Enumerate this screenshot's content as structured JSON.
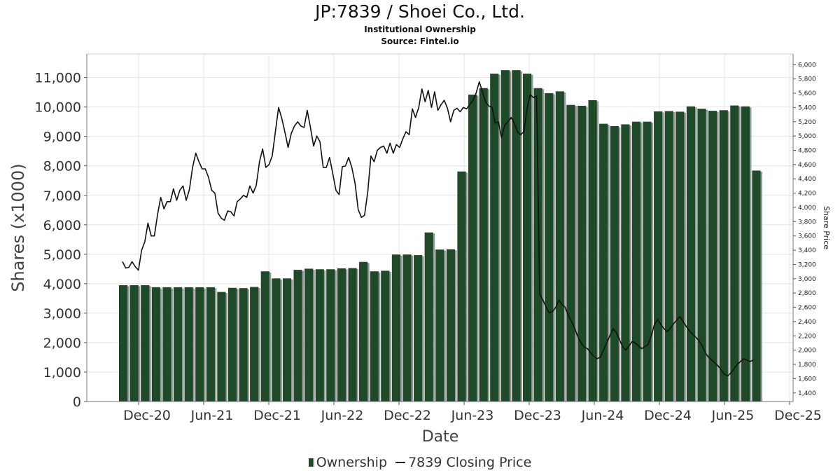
{
  "title": "JP:7839 / Shoei Co., Ltd.",
  "subtitle": "Institutional Ownership",
  "source": "Source: Fintel.io",
  "legend": {
    "bar_label": "Ownership",
    "line_label": "7839 Closing Price"
  },
  "colors": {
    "bar": "#1e4a2a",
    "bar_shadow": "#9a9a9a",
    "line": "#111111",
    "grid": "#e4e4e4"
  },
  "chart_data": {
    "type": "bar",
    "xlabel": "Date",
    "ylabel": "Shares (x1000)",
    "y2label": "Share Price",
    "ylim": [
      0,
      11800
    ],
    "y2lim": [
      1280,
      6150
    ],
    "yticks": [
      0,
      1000,
      2000,
      3000,
      4000,
      5000,
      6000,
      7000,
      8000,
      9000,
      10000,
      11000
    ],
    "y2ticks": [
      1400,
      1600,
      1800,
      2000,
      2200,
      2400,
      2600,
      2800,
      3000,
      3200,
      3400,
      3600,
      3800,
      4000,
      4200,
      4400,
      4600,
      4800,
      5000,
      5200,
      5400,
      5600,
      5800,
      6000
    ],
    "xticks": [
      "Dec-20",
      "Jun-21",
      "Dec-21",
      "Jun-22",
      "Dec-22",
      "Jun-23",
      "Dec-23",
      "Jun-24",
      "Dec-24",
      "Jun-25",
      "Dec-25"
    ],
    "grid": true,
    "legend_position": "bottom",
    "series": [
      {
        "name": "Ownership",
        "type": "bar",
        "values": [
          3950,
          3950,
          3950,
          3880,
          3880,
          3880,
          3880,
          3880,
          3880,
          3720,
          3860,
          3850,
          3890,
          4420,
          4180,
          4180,
          4470,
          4510,
          4490,
          4490,
          4520,
          4530,
          4740,
          4420,
          4440,
          4990,
          4990,
          4970,
          5740,
          5160,
          5170,
          7810,
          10420,
          10640,
          11130,
          11250,
          11250,
          11130,
          10640,
          10470,
          10530,
          10070,
          10040,
          10230,
          9430,
          9350,
          9410,
          9500,
          9500,
          9850,
          9860,
          9840,
          10020,
          9940,
          9870,
          9890,
          10050,
          10020,
          7840
        ]
      },
      {
        "name": "7839 Closing Price",
        "type": "line",
        "values": [
          3240,
          3150,
          3160,
          3240,
          3170,
          3120,
          3400,
          3520,
          3780,
          3600,
          3600,
          3900,
          4140,
          3980,
          4080,
          4080,
          4260,
          4100,
          4240,
          4300,
          4100,
          4250,
          4560,
          4760,
          4640,
          4540,
          4540,
          4420,
          4240,
          4200,
          3920,
          3850,
          3820,
          3950,
          3940,
          3880,
          4080,
          4120,
          4170,
          4140,
          4300,
          4200,
          4310,
          4640,
          4820,
          4560,
          4600,
          4720,
          5060,
          5400,
          5250,
          5050,
          4840,
          5040,
          5140,
          5200,
          5140,
          5120,
          5360,
          5120,
          4860,
          5000,
          4920,
          4560,
          4560,
          4700,
          4480,
          4240,
          4180,
          4570,
          4580,
          4700,
          4560,
          4340,
          3970,
          3860,
          3890,
          4220,
          4720,
          4640,
          4800,
          4840,
          4860,
          4760,
          4900,
          4760,
          4880,
          4840,
          4960,
          5060,
          5020,
          5380,
          5260,
          5400,
          5660,
          5480,
          5640,
          5400,
          5620,
          5360,
          5440,
          5500,
          5390,
          5200,
          5360,
          5390,
          5340,
          5400,
          5380,
          5440,
          5500,
          5600,
          5760,
          5620,
          5480,
          5420,
          5400,
          5180,
          5200,
          4980,
          5150,
          5200,
          5260,
          5180,
          5060,
          5020,
          5060,
          5380,
          5580,
          5540,
          5560,
          2780,
          2700,
          2600,
          2520,
          2540,
          2600,
          2700,
          2640,
          2600,
          2480,
          2400,
          2300,
          2180,
          2100,
          2040,
          2020,
          1960,
          1910,
          1880,
          1900,
          2000,
          2100,
          2200,
          2300,
          2250,
          2150,
          2050,
          2000,
          2060,
          2120,
          2100,
          2060,
          2020,
          2050,
          2080,
          2200,
          2360,
          2430,
          2360,
          2300,
          2260,
          2310,
          2370,
          2420,
          2470,
          2400,
          2330,
          2270,
          2220,
          2180,
          2130,
          2060,
          1960,
          1900,
          1860,
          1820,
          1780,
          1720,
          1660,
          1640,
          1680,
          1740,
          1800,
          1840,
          1880,
          1860,
          1840,
          1860
        ]
      }
    ]
  }
}
